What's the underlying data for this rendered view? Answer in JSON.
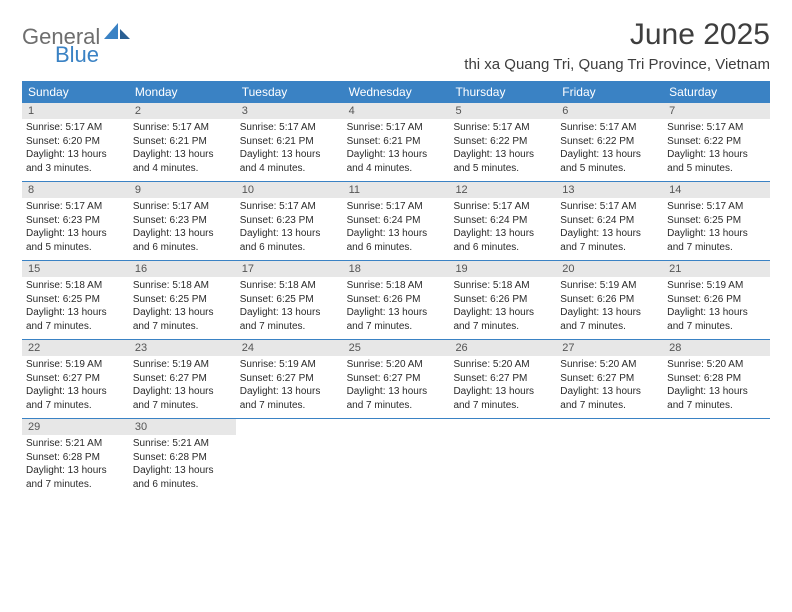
{
  "logo": {
    "text1": "General",
    "text2": "Blue"
  },
  "title": "June 2025",
  "location": "thi xa Quang Tri, Quang Tri Province, Vietnam",
  "colors": {
    "header_bg": "#3a82c4",
    "header_text": "#ffffff",
    "daynum_bg": "#e7e7e7",
    "row_border": "#3a82c4",
    "logo_gray": "#6e6e6e",
    "logo_blue": "#3a82c4"
  },
  "weekdays": [
    "Sunday",
    "Monday",
    "Tuesday",
    "Wednesday",
    "Thursday",
    "Friday",
    "Saturday"
  ],
  "weeks": [
    [
      {
        "day": "1",
        "sunrise": "Sunrise: 5:17 AM",
        "sunset": "Sunset: 6:20 PM",
        "daylight1": "Daylight: 13 hours",
        "daylight2": "and 3 minutes."
      },
      {
        "day": "2",
        "sunrise": "Sunrise: 5:17 AM",
        "sunset": "Sunset: 6:21 PM",
        "daylight1": "Daylight: 13 hours",
        "daylight2": "and 4 minutes."
      },
      {
        "day": "3",
        "sunrise": "Sunrise: 5:17 AM",
        "sunset": "Sunset: 6:21 PM",
        "daylight1": "Daylight: 13 hours",
        "daylight2": "and 4 minutes."
      },
      {
        "day": "4",
        "sunrise": "Sunrise: 5:17 AM",
        "sunset": "Sunset: 6:21 PM",
        "daylight1": "Daylight: 13 hours",
        "daylight2": "and 4 minutes."
      },
      {
        "day": "5",
        "sunrise": "Sunrise: 5:17 AM",
        "sunset": "Sunset: 6:22 PM",
        "daylight1": "Daylight: 13 hours",
        "daylight2": "and 5 minutes."
      },
      {
        "day": "6",
        "sunrise": "Sunrise: 5:17 AM",
        "sunset": "Sunset: 6:22 PM",
        "daylight1": "Daylight: 13 hours",
        "daylight2": "and 5 minutes."
      },
      {
        "day": "7",
        "sunrise": "Sunrise: 5:17 AM",
        "sunset": "Sunset: 6:22 PM",
        "daylight1": "Daylight: 13 hours",
        "daylight2": "and 5 minutes."
      }
    ],
    [
      {
        "day": "8",
        "sunrise": "Sunrise: 5:17 AM",
        "sunset": "Sunset: 6:23 PM",
        "daylight1": "Daylight: 13 hours",
        "daylight2": "and 5 minutes."
      },
      {
        "day": "9",
        "sunrise": "Sunrise: 5:17 AM",
        "sunset": "Sunset: 6:23 PM",
        "daylight1": "Daylight: 13 hours",
        "daylight2": "and 6 minutes."
      },
      {
        "day": "10",
        "sunrise": "Sunrise: 5:17 AM",
        "sunset": "Sunset: 6:23 PM",
        "daylight1": "Daylight: 13 hours",
        "daylight2": "and 6 minutes."
      },
      {
        "day": "11",
        "sunrise": "Sunrise: 5:17 AM",
        "sunset": "Sunset: 6:24 PM",
        "daylight1": "Daylight: 13 hours",
        "daylight2": "and 6 minutes."
      },
      {
        "day": "12",
        "sunrise": "Sunrise: 5:17 AM",
        "sunset": "Sunset: 6:24 PM",
        "daylight1": "Daylight: 13 hours",
        "daylight2": "and 6 minutes."
      },
      {
        "day": "13",
        "sunrise": "Sunrise: 5:17 AM",
        "sunset": "Sunset: 6:24 PM",
        "daylight1": "Daylight: 13 hours",
        "daylight2": "and 7 minutes."
      },
      {
        "day": "14",
        "sunrise": "Sunrise: 5:17 AM",
        "sunset": "Sunset: 6:25 PM",
        "daylight1": "Daylight: 13 hours",
        "daylight2": "and 7 minutes."
      }
    ],
    [
      {
        "day": "15",
        "sunrise": "Sunrise: 5:18 AM",
        "sunset": "Sunset: 6:25 PM",
        "daylight1": "Daylight: 13 hours",
        "daylight2": "and 7 minutes."
      },
      {
        "day": "16",
        "sunrise": "Sunrise: 5:18 AM",
        "sunset": "Sunset: 6:25 PM",
        "daylight1": "Daylight: 13 hours",
        "daylight2": "and 7 minutes."
      },
      {
        "day": "17",
        "sunrise": "Sunrise: 5:18 AM",
        "sunset": "Sunset: 6:25 PM",
        "daylight1": "Daylight: 13 hours",
        "daylight2": "and 7 minutes."
      },
      {
        "day": "18",
        "sunrise": "Sunrise: 5:18 AM",
        "sunset": "Sunset: 6:26 PM",
        "daylight1": "Daylight: 13 hours",
        "daylight2": "and 7 minutes."
      },
      {
        "day": "19",
        "sunrise": "Sunrise: 5:18 AM",
        "sunset": "Sunset: 6:26 PM",
        "daylight1": "Daylight: 13 hours",
        "daylight2": "and 7 minutes."
      },
      {
        "day": "20",
        "sunrise": "Sunrise: 5:19 AM",
        "sunset": "Sunset: 6:26 PM",
        "daylight1": "Daylight: 13 hours",
        "daylight2": "and 7 minutes."
      },
      {
        "day": "21",
        "sunrise": "Sunrise: 5:19 AM",
        "sunset": "Sunset: 6:26 PM",
        "daylight1": "Daylight: 13 hours",
        "daylight2": "and 7 minutes."
      }
    ],
    [
      {
        "day": "22",
        "sunrise": "Sunrise: 5:19 AM",
        "sunset": "Sunset: 6:27 PM",
        "daylight1": "Daylight: 13 hours",
        "daylight2": "and 7 minutes."
      },
      {
        "day": "23",
        "sunrise": "Sunrise: 5:19 AM",
        "sunset": "Sunset: 6:27 PM",
        "daylight1": "Daylight: 13 hours",
        "daylight2": "and 7 minutes."
      },
      {
        "day": "24",
        "sunrise": "Sunrise: 5:19 AM",
        "sunset": "Sunset: 6:27 PM",
        "daylight1": "Daylight: 13 hours",
        "daylight2": "and 7 minutes."
      },
      {
        "day": "25",
        "sunrise": "Sunrise: 5:20 AM",
        "sunset": "Sunset: 6:27 PM",
        "daylight1": "Daylight: 13 hours",
        "daylight2": "and 7 minutes."
      },
      {
        "day": "26",
        "sunrise": "Sunrise: 5:20 AM",
        "sunset": "Sunset: 6:27 PM",
        "daylight1": "Daylight: 13 hours",
        "daylight2": "and 7 minutes."
      },
      {
        "day": "27",
        "sunrise": "Sunrise: 5:20 AM",
        "sunset": "Sunset: 6:27 PM",
        "daylight1": "Daylight: 13 hours",
        "daylight2": "and 7 minutes."
      },
      {
        "day": "28",
        "sunrise": "Sunrise: 5:20 AM",
        "sunset": "Sunset: 6:28 PM",
        "daylight1": "Daylight: 13 hours",
        "daylight2": "and 7 minutes."
      }
    ],
    [
      {
        "day": "29",
        "sunrise": "Sunrise: 5:21 AM",
        "sunset": "Sunset: 6:28 PM",
        "daylight1": "Daylight: 13 hours",
        "daylight2": "and 7 minutes."
      },
      {
        "day": "30",
        "sunrise": "Sunrise: 5:21 AM",
        "sunset": "Sunset: 6:28 PM",
        "daylight1": "Daylight: 13 hours",
        "daylight2": "and 6 minutes."
      },
      {
        "empty": true
      },
      {
        "empty": true
      },
      {
        "empty": true
      },
      {
        "empty": true
      },
      {
        "empty": true
      }
    ]
  ]
}
